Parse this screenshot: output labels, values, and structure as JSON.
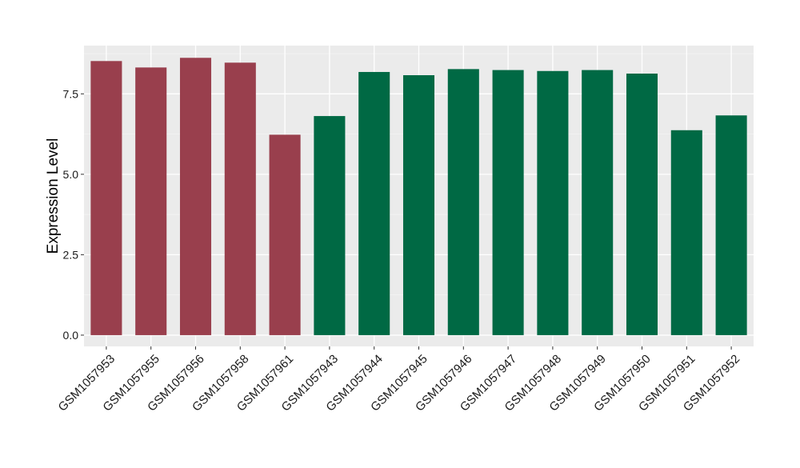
{
  "chart_data": {
    "type": "bar",
    "title": "",
    "xlabel": "",
    "ylabel": "Expression Level",
    "ylim": [
      -0.35,
      9.0
    ],
    "yticks": [
      0.0,
      2.5,
      5.0,
      7.5
    ],
    "ytick_labels": [
      "0.0",
      "2.5",
      "5.0",
      "7.5"
    ],
    "grid": true,
    "legend": "none",
    "categories": [
      "GSM1057953",
      "GSM1057955",
      "GSM1057956",
      "GSM1057958",
      "GSM1057961",
      "GSM1057943",
      "GSM1057944",
      "GSM1057945",
      "GSM1057946",
      "GSM1057947",
      "GSM1057948",
      "GSM1057949",
      "GSM1057950",
      "GSM1057951",
      "GSM1057952"
    ],
    "values": [
      8.52,
      8.32,
      8.62,
      8.47,
      6.23,
      6.81,
      8.18,
      8.08,
      8.27,
      8.24,
      8.21,
      8.24,
      8.13,
      6.37,
      6.83
    ],
    "bar_colors": [
      "#993f4d",
      "#993f4d",
      "#993f4d",
      "#993f4d",
      "#993f4d",
      "#006944",
      "#006944",
      "#006944",
      "#006944",
      "#006944",
      "#006944",
      "#006944",
      "#006944",
      "#006944",
      "#006944"
    ],
    "colors": {
      "panel_background": "#ebebeb",
      "grid_major": "#ffffff",
      "grid_minor": "#f5f5f5",
      "tick_text": "#1a1a1a",
      "axis_tick": "#333333"
    }
  }
}
